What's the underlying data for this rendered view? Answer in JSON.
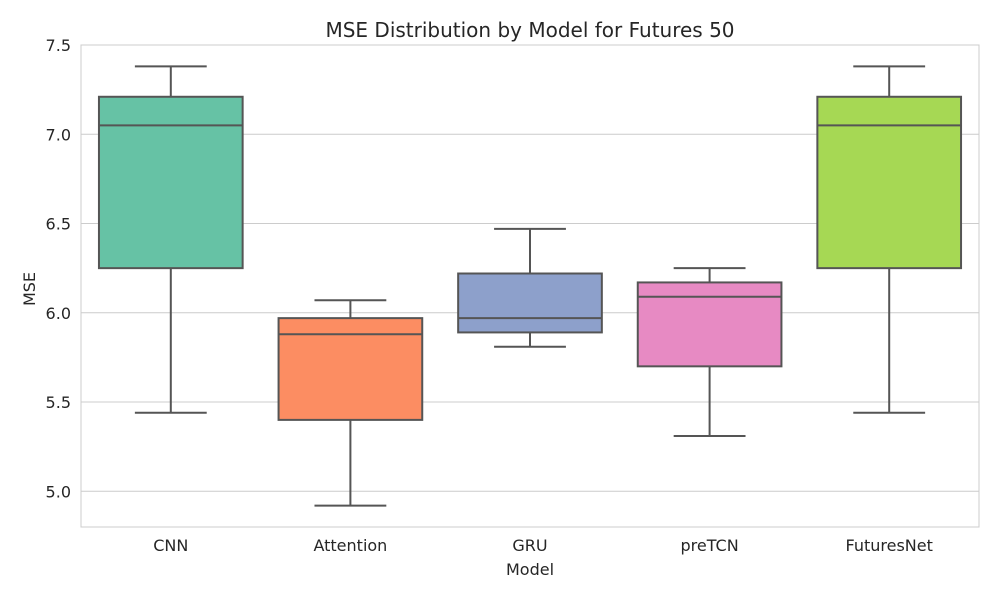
{
  "chart_data": {
    "type": "box",
    "title": "MSE Distribution by Model for Futures 50",
    "xlabel": "Model",
    "ylabel": "MSE",
    "ylim": [
      4.8,
      7.5
    ],
    "y_ticks": [
      "5.0",
      "5.5",
      "6.0",
      "6.5",
      "7.0",
      "7.5"
    ],
    "y_tick_values": [
      5.0,
      5.5,
      6.0,
      6.5,
      7.0,
      7.5
    ],
    "grid": true,
    "categories": [
      "CNN",
      "Attention",
      "GRU",
      "preTCN",
      "FuturesNet"
    ],
    "boxes": [
      {
        "category": "CNN",
        "whisker_low": 5.44,
        "q1": 6.25,
        "median": 7.05,
        "q3": 7.21,
        "whisker_high": 7.38,
        "color": "#66c2a5"
      },
      {
        "category": "Attention",
        "whisker_low": 4.92,
        "q1": 5.4,
        "median": 5.88,
        "q3": 5.97,
        "whisker_high": 6.07,
        "color": "#fc8d62"
      },
      {
        "category": "GRU",
        "whisker_low": 5.81,
        "q1": 5.89,
        "median": 5.97,
        "q3": 6.22,
        "whisker_high": 6.47,
        "color": "#8da0cb"
      },
      {
        "category": "preTCN",
        "whisker_low": 5.31,
        "q1": 5.7,
        "median": 6.09,
        "q3": 6.17,
        "whisker_high": 6.25,
        "color": "#e78ac3"
      },
      {
        "category": "FuturesNet",
        "whisker_low": 5.44,
        "q1": 6.25,
        "median": 7.05,
        "q3": 7.21,
        "whisker_high": 7.38,
        "color": "#a6d854"
      }
    ]
  }
}
